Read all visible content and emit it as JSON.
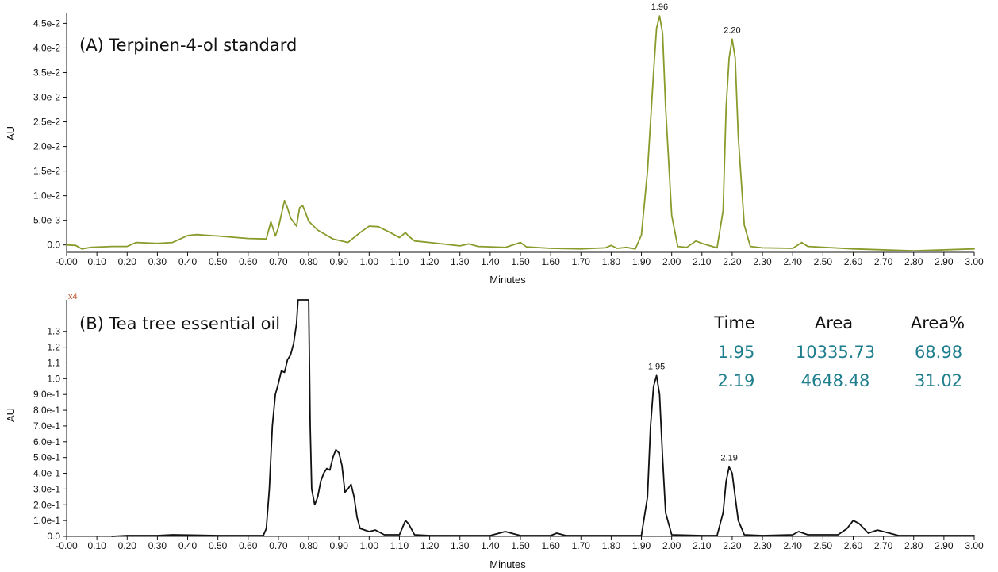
{
  "colors": {
    "trace_a": "#8a9a2b",
    "trace_b": "#111111",
    "table_values": "#1f7f8f",
    "multiplier": "#c0542c"
  },
  "chart_data": [
    {
      "type": "line",
      "title": "(A) Terpinen-4-ol standard",
      "xlabel": "Minutes",
      "ylabel": "AU",
      "xlim": [
        0.0,
        3.0
      ],
      "ylim": [
        -0.0015,
        0.047
      ],
      "x_ticks": [
        "-0.00",
        "0.10",
        "0.20",
        "0.30",
        "0.40",
        "0.50",
        "0.60",
        "0.70",
        "0.80",
        "0.90",
        "1.00",
        "1.10",
        "1.20",
        "1.30",
        "1.40",
        "1.50",
        "1.60",
        "1.70",
        "1.80",
        "1.90",
        "2.00",
        "2.10",
        "2.20",
        "2.30",
        "2.40",
        "2.50",
        "2.60",
        "2.70",
        "2.80",
        "2.90",
        "3.00"
      ],
      "y_tick_values": [
        0,
        0.005,
        0.01,
        0.015,
        0.02,
        0.025,
        0.03,
        0.035,
        0.04,
        0.045
      ],
      "y_ticks": [
        "0.0",
        "5.0e-3",
        "1.0e-2",
        "1.5e-2",
        "2.0e-2",
        "2.5e-2",
        "3.0e-2",
        "3.5e-2",
        "4.0e-2",
        "4.5e-2"
      ],
      "peak_labels": [
        {
          "x": 1.96,
          "y": 0.0465,
          "text": "1.96"
        },
        {
          "x": 2.2,
          "y": 0.0418,
          "text": "2.20"
        }
      ],
      "series": [
        {
          "x": [
            0.0,
            0.03,
            0.05,
            0.08,
            0.15,
            0.2,
            0.23,
            0.3,
            0.35,
            0.4,
            0.43,
            0.5,
            0.6,
            0.66,
            0.675,
            0.68,
            0.69,
            0.7,
            0.72,
            0.73,
            0.74,
            0.76,
            0.77,
            0.78,
            0.79,
            0.8,
            0.83,
            0.88,
            0.93,
            0.97,
            1.0,
            1.03,
            1.07,
            1.1,
            1.12,
            1.13,
            1.15,
            1.2,
            1.3,
            1.33,
            1.36,
            1.45,
            1.48,
            1.5,
            1.52,
            1.6,
            1.7,
            1.78,
            1.8,
            1.82,
            1.85,
            1.88,
            1.9,
            1.92,
            1.94,
            1.95,
            1.96,
            1.97,
            1.98,
            2.0,
            2.02,
            2.05,
            2.08,
            2.1,
            2.15,
            2.17,
            2.18,
            2.19,
            2.2,
            2.21,
            2.22,
            2.24,
            2.26,
            2.3,
            2.4,
            2.43,
            2.45,
            2.6,
            2.8,
            3.0
          ],
          "y": [
            0.0,
            -0.0001,
            -0.0008,
            -0.0005,
            -0.0003,
            -0.0003,
            0.0005,
            0.0003,
            0.0005,
            0.0019,
            0.0021,
            0.0018,
            0.0013,
            0.0012,
            0.0047,
            0.0038,
            0.0018,
            0.0035,
            0.009,
            0.0075,
            0.0055,
            0.0038,
            0.0075,
            0.008,
            0.0065,
            0.0048,
            0.003,
            0.0012,
            0.0005,
            0.0025,
            0.0038,
            0.0037,
            0.0025,
            0.0015,
            0.0025,
            0.0018,
            0.0008,
            0.0005,
            -0.0002,
            0.0002,
            -0.0003,
            -0.0005,
            0.0001,
            0.0005,
            -0.0004,
            -0.0007,
            -0.0008,
            -0.0006,
            -0.0001,
            -0.0007,
            -0.0005,
            -0.0008,
            0.002,
            0.015,
            0.035,
            0.044,
            0.0465,
            0.043,
            0.028,
            0.006,
            -0.0003,
            -0.0005,
            0.0008,
            0.0003,
            -0.0006,
            0.007,
            0.028,
            0.038,
            0.0418,
            0.038,
            0.022,
            0.004,
            -0.0003,
            -0.0006,
            -0.0007,
            0.0005,
            -0.0003,
            -0.0008,
            -0.0012,
            -0.0008
          ]
        }
      ]
    },
    {
      "type": "line",
      "title": "(B) Tea tree essential oil",
      "xlabel": "Minutes",
      "ylabel": "AU",
      "multiplier": "x4",
      "xlim": [
        0.0,
        3.0
      ],
      "ylim": [
        0.0,
        1.5
      ],
      "x_ticks": [
        "-0.00",
        "0.10",
        "0.20",
        "0.30",
        "0.40",
        "0.50",
        "0.60",
        "0.70",
        "0.80",
        "0.90",
        "1.00",
        "1.10",
        "1.20",
        "1.30",
        "1.40",
        "1.50",
        "1.60",
        "1.70",
        "1.80",
        "1.90",
        "2.00",
        "2.10",
        "2.20",
        "2.30",
        "2.40",
        "2.50",
        "2.60",
        "2.70",
        "2.80",
        "2.90",
        "3.00"
      ],
      "y_tick_values": [
        0.0,
        0.1,
        0.2,
        0.3,
        0.4,
        0.5,
        0.6,
        0.7,
        0.8,
        0.9,
        1.0,
        1.1,
        1.2,
        1.3
      ],
      "y_ticks": [
        "0.0",
        "1.0e-1",
        "2.0e-1",
        "3.0e-1",
        "4.0e-1",
        "5.0e-1",
        "6.0e-1",
        "7.0e-1",
        "8.0e-1",
        "9.0e-1",
        "1.0",
        "1.1",
        "1.2",
        "1.3"
      ],
      "peak_labels": [
        {
          "x": 1.95,
          "y": 1.02,
          "text": "1.95"
        },
        {
          "x": 2.19,
          "y": 0.44,
          "text": "2.19"
        }
      ],
      "series": [
        {
          "x": [
            0.15,
            0.2,
            0.3,
            0.35,
            0.5,
            0.6,
            0.65,
            0.66,
            0.67,
            0.68,
            0.69,
            0.7,
            0.71,
            0.72,
            0.73,
            0.74,
            0.75,
            0.76,
            0.765,
            0.77,
            0.8,
            0.805,
            0.81,
            0.82,
            0.83,
            0.84,
            0.85,
            0.86,
            0.87,
            0.88,
            0.89,
            0.9,
            0.91,
            0.92,
            0.93,
            0.94,
            0.95,
            0.96,
            0.97,
            1.0,
            1.02,
            1.05,
            1.1,
            1.12,
            1.13,
            1.15,
            1.2,
            1.3,
            1.4,
            1.45,
            1.5,
            1.6,
            1.62,
            1.65,
            1.8,
            1.9,
            1.92,
            1.93,
            1.94,
            1.95,
            1.96,
            1.97,
            1.98,
            2.0,
            2.1,
            2.15,
            2.17,
            2.18,
            2.19,
            2.2,
            2.21,
            2.22,
            2.24,
            2.3,
            2.4,
            2.42,
            2.45,
            2.5,
            2.55,
            2.58,
            2.6,
            2.62,
            2.65,
            2.68,
            2.7,
            2.75,
            3.0
          ],
          "y": [
            0.0,
            0.005,
            0.005,
            0.01,
            0.005,
            0.005,
            0.005,
            0.05,
            0.3,
            0.7,
            0.9,
            0.97,
            1.05,
            1.04,
            1.12,
            1.15,
            1.22,
            1.35,
            1.5,
            1.5,
            1.5,
            0.7,
            0.3,
            0.2,
            0.25,
            0.35,
            0.4,
            0.43,
            0.42,
            0.5,
            0.55,
            0.53,
            0.45,
            0.28,
            0.3,
            0.33,
            0.25,
            0.12,
            0.05,
            0.03,
            0.04,
            0.01,
            0.01,
            0.1,
            0.08,
            0.01,
            0.005,
            0.005,
            0.005,
            0.03,
            0.005,
            0.005,
            0.02,
            0.005,
            0.005,
            0.005,
            0.25,
            0.7,
            0.95,
            1.02,
            0.9,
            0.5,
            0.15,
            0.01,
            0.005,
            0.005,
            0.15,
            0.35,
            0.44,
            0.4,
            0.25,
            0.1,
            0.01,
            0.005,
            0.01,
            0.03,
            0.01,
            0.01,
            0.01,
            0.05,
            0.1,
            0.08,
            0.02,
            0.04,
            0.03,
            0.005,
            0.005
          ]
        }
      ],
      "table": {
        "headers": [
          "Time",
          "Area",
          "Area%"
        ],
        "rows": [
          [
            "1.95",
            "10335.73",
            "68.98"
          ],
          [
            "2.19",
            "4648.48",
            "31.02"
          ]
        ]
      }
    }
  ]
}
